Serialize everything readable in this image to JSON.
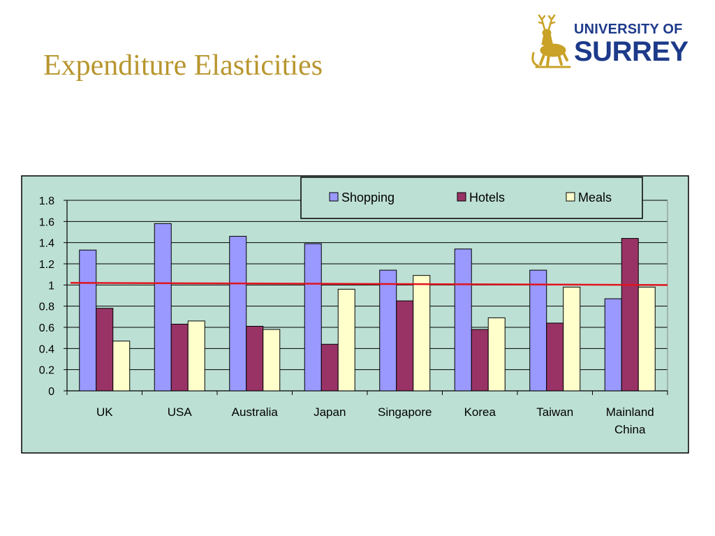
{
  "slide": {
    "title": "Expenditure Elasticities",
    "logo": {
      "line1": "UNIVERSITY OF",
      "line2": "SURREY",
      "icon": "stag-icon",
      "color": "#1d3a8a",
      "icon_color": "#c9a227"
    }
  },
  "colors": {
    "title": "#b8962e",
    "chart_background": "#bde0d4",
    "reference_line": "#e0141e"
  },
  "chart_data": {
    "type": "bar",
    "categories": [
      "UK",
      "USA",
      "Australia",
      "Japan",
      "Singapore",
      "Korea",
      "Taiwan",
      "Mainland China"
    ],
    "category_lines": [
      [
        "UK"
      ],
      [
        "USA"
      ],
      [
        "Australia"
      ],
      [
        "Japan"
      ],
      [
        "Singapore"
      ],
      [
        "Korea"
      ],
      [
        "Taiwan"
      ],
      [
        "Mainland",
        "China"
      ]
    ],
    "series": [
      {
        "name": "Shopping",
        "color": "#9999ff",
        "values": [
          1.33,
          1.58,
          1.46,
          1.39,
          1.14,
          1.34,
          1.14,
          0.87
        ]
      },
      {
        "name": "Hotels",
        "color": "#993366",
        "values": [
          0.78,
          0.63,
          0.61,
          0.44,
          0.85,
          0.58,
          0.64,
          1.44
        ]
      },
      {
        "name": "Meals",
        "color": "#ffffcc",
        "values": [
          0.47,
          0.66,
          0.58,
          0.96,
          1.09,
          0.69,
          0.98,
          0.98
        ]
      }
    ],
    "reference_line": {
      "y_start": 1.02,
      "y_end": 1.0
    },
    "ylim": [
      0,
      1.8
    ],
    "yticks": [
      0,
      0.2,
      0.4,
      0.6,
      0.8,
      1,
      1.2,
      1.4,
      1.6,
      1.8
    ],
    "ytick_labels": [
      "0",
      "0.2",
      "0.4",
      "0.6",
      "0.8",
      "1",
      "1.2",
      "1.4",
      "1.6",
      "1.8"
    ],
    "grid": true,
    "legend_position": "top"
  }
}
